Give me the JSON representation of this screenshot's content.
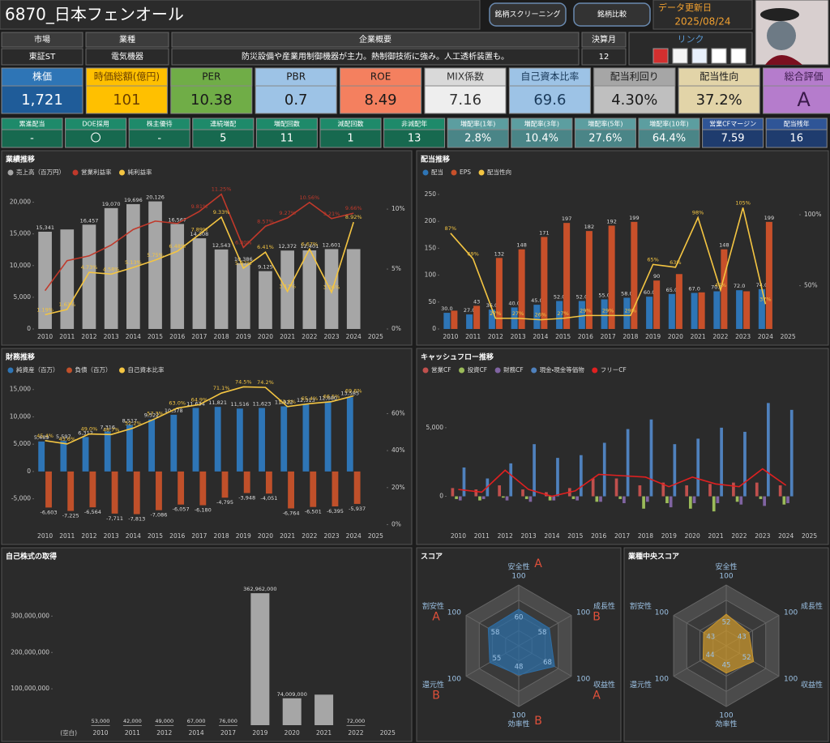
{
  "header": {
    "title": "6870_日本フェンオール",
    "buttons": [
      "銘柄スクリーニング",
      "銘柄比較"
    ],
    "update_label": "データ更新日",
    "update_date": "2025/08/24"
  },
  "info": {
    "fields": [
      {
        "label": "市場",
        "value": "東証ST"
      },
      {
        "label": "業種",
        "value": "電気機器"
      },
      {
        "label": "企業概要",
        "value": "防災設備や産業用制御機器が主力。熱制御技術に強み。人工透析装置も。"
      },
      {
        "label": "決算月",
        "value": "12"
      }
    ],
    "links_label": "リンク"
  },
  "kpis": [
    {
      "label": "株価",
      "value": "1,721"
    },
    {
      "label": "時価総額(億円)",
      "value": "101"
    },
    {
      "label": "PER",
      "value": "10.38"
    },
    {
      "label": "PBR",
      "value": "0.7"
    },
    {
      "label": "ROE",
      "value": "8.49"
    },
    {
      "label": "MIX係数",
      "value": "7.16"
    },
    {
      "label": "自己資本比率",
      "value": "69.6"
    },
    {
      "label": "配当利回り",
      "value": "4.30%"
    },
    {
      "label": "配当性向",
      "value": "37.2%"
    },
    {
      "label": "総合評価",
      "value": "A"
    }
  ],
  "stats": [
    {
      "label": "累進配当",
      "value": "-"
    },
    {
      "label": "DOE採用",
      "value": "〇"
    },
    {
      "label": "株主優待",
      "value": "-"
    },
    {
      "label": "連続増配",
      "value": "5"
    },
    {
      "label": "増配回数",
      "value": "11"
    },
    {
      "label": "減配回数",
      "value": "1"
    },
    {
      "label": "非減配年",
      "value": "13"
    },
    {
      "label": "増配率(1年)",
      "value": "2.8%"
    },
    {
      "label": "増配率(3年)",
      "value": "10.4%"
    },
    {
      "label": "増配率(5年)",
      "value": "27.6%"
    },
    {
      "label": "増配率(10年)",
      "value": "64.4%"
    },
    {
      "label": "営業CFマージン",
      "value": "7.59"
    },
    {
      "label": "配当残年",
      "value": "16"
    }
  ],
  "chart_data": [
    {
      "type": "combo",
      "title": "業績推移",
      "categories": [
        "2010",
        "2011",
        "2012",
        "2013",
        "2014",
        "2015",
        "2016",
        "2017",
        "2018",
        "2019",
        "2020",
        "2021",
        "2022",
        "2023",
        "2024",
        "2025"
      ],
      "series": [
        {
          "name": "売上高（百万円）",
          "type": "bar",
          "color": "#a6a6a6",
          "values": [
            15341,
            15700,
            16457,
            19070,
            19696,
            20126,
            16567,
            14308,
            12543,
            10386,
            9125,
            12372,
            12401,
            12601,
            12600,
            null
          ],
          "value_labels": [
            "15,341",
            null,
            "16,457",
            "19,070",
            "19,696",
            "20,126",
            "16,567",
            "14,308",
            "12,543",
            "10,386",
            "9,125",
            "12,372",
            "12,401",
            "12,601",
            null,
            null
          ]
        },
        {
          "name": "営業利益率",
          "type": "line",
          "axis": "y2",
          "color": "#c0392b",
          "values": [
            3.2,
            5.7,
            6.1,
            7.0,
            8.3,
            9.0,
            8.8,
            9.81,
            11.25,
            6.8,
            8.57,
            9.27,
            10.56,
            9.21,
            9.66,
            null
          ],
          "value_labels": [
            null,
            null,
            null,
            null,
            null,
            null,
            null,
            "9.81%",
            "11.25%",
            "6.80%",
            "8.57%",
            "9.27%",
            "10.56%",
            "9.21%",
            "9.66%",
            null
          ]
        },
        {
          "name": "純利益率",
          "type": "line",
          "axis": "y2",
          "color": "#f4c542",
          "values": [
            1.19,
            1.63,
            4.73,
            4.58,
            5.13,
            5.75,
            6.48,
            7.89,
            9.33,
            5.07,
            6.41,
            3.13,
            6.67,
            3.06,
            8.92,
            null
          ],
          "value_labels": [
            "1.19%",
            "1.63%",
            "4.73%",
            "4.58%",
            "5.13%",
            "5.75%",
            "6.48%",
            "7.89%",
            "9.33%",
            "5.07%",
            "6.41%",
            "3.13%",
            "6.67%",
            "3.06%",
            "8.92%",
            null
          ]
        }
      ],
      "ylim": [
        0,
        22500
      ],
      "yticks": [
        0,
        {
          "value": 5000,
          "label": "5,000"
        },
        {
          "value": 10000,
          "label": "10,000"
        },
        {
          "value": 15000,
          "label": "15,000"
        },
        {
          "value": 20000,
          "label": "20,000"
        }
      ],
      "y2lim": [
        0,
        11.9
      ],
      "y2ticks": [
        {
          "value": 0,
          "label": "0%"
        },
        {
          "value": 5,
          "label": "5%"
        },
        {
          "value": 10,
          "label": "10%"
        }
      ]
    },
    {
      "type": "combo",
      "title": "配当推移",
      "categories": [
        "2010",
        "2011",
        "2012",
        "2013",
        "2014",
        "2015",
        "2016",
        "2017",
        "2018",
        "2019",
        "2020",
        "2021",
        "2022",
        "2023",
        "2024",
        "2025"
      ],
      "series": [
        {
          "name": "配当",
          "type": "bar",
          "color": "#2e75b6",
          "values": [
            30,
            27,
            36,
            40,
            45,
            52,
            52,
            55,
            58,
            60,
            65,
            67,
            70,
            72,
            74,
            null
          ],
          "value_labels": [
            "30.0",
            "27.0",
            "36.0",
            "40.0",
            "45.0",
            "52.0",
            "52.0",
            "55.0",
            "58.0",
            "60.0",
            "65.0",
            "67.0",
            "70.0",
            "72.0",
            "74.0",
            null
          ]
        },
        {
          "name": "EPS",
          "type": "bar",
          "color": "#c8502a",
          "values": [
            34,
            43,
            132,
            148,
            171,
            197,
            182,
            192,
            199,
            90,
            102,
            68,
            148,
            70,
            199,
            null
          ],
          "value_labels": [
            null,
            "43",
            "132",
            "148",
            "171",
            "197",
            "182",
            "192",
            "199",
            "90",
            null,
            null,
            "148",
            null,
            "199",
            null
          ]
        },
        {
          "name": "配当性向",
          "type": "line",
          "axis": "y2",
          "color": "#f4c542",
          "values": [
            87,
            69,
            27,
            27,
            26,
            27,
            29,
            29,
            29,
            65,
            63,
            98,
            47,
            105,
            37,
            null
          ],
          "value_labels": [
            "87%",
            "69%",
            "27%",
            "27%",
            "26%",
            "27%",
            "29%",
            "29%",
            "29%",
            "65%",
            "63%",
            "98%",
            "47%",
            "105%",
            "37%",
            null
          ]
        }
      ],
      "ylim": [
        0,
        265
      ],
      "yticks": [
        0,
        50,
        100,
        150,
        200,
        250
      ],
      "y2lim": [
        19.5,
        120
      ],
      "y2ticks": [
        {
          "value": 50,
          "label": "50%"
        },
        {
          "value": 100,
          "label": "100%"
        }
      ]
    },
    {
      "type": "combo",
      "title": "財務推移",
      "categories": [
        "2010",
        "2011",
        "2012",
        "2013",
        "2014",
        "2015",
        "2016",
        "2017",
        "2018",
        "2019",
        "2020",
        "2021",
        "2022",
        "2023",
        "2024",
        "2025"
      ],
      "series": [
        {
          "name": "純資産（百万）",
          "type": "bar",
          "color": "#2e75b6",
          "values": [
            5489,
            5597,
            6312,
            7316,
            8517,
            9522,
            10378,
            11634,
            11821,
            11516,
            11623,
            11922,
            12313,
            12680,
            13585,
            null
          ],
          "value_labels": [
            "5,489",
            "5,597",
            "6,312",
            "7,316",
            "8,517",
            "9,522",
            "10,378",
            "11,634",
            "11,821",
            "11,516",
            "11,623",
            "11,922",
            "12,313",
            "12,680",
            "13,585",
            null
          ]
        },
        {
          "name": "負債（百万）",
          "type": "bar",
          "color": "#c0502a",
          "values": [
            -6603,
            -7225,
            -6564,
            -7711,
            -7813,
            -7086,
            -6057,
            -6180,
            -4795,
            -3948,
            -4051,
            -6764,
            -6501,
            -6395,
            -5937,
            null
          ],
          "value_labels": [
            "-6,603",
            "-7,225",
            "-6,564",
            "-7,711",
            "-7,813",
            "-7,086",
            "-6,057",
            "-6,180",
            "-4,795",
            "-3,948",
            "-4,051",
            "-6,764",
            "-6,501",
            "-6,395",
            "-5,937",
            null
          ]
        },
        {
          "name": "自己資本比率",
          "type": "line",
          "axis": "y2",
          "color": "#f4c542",
          "values": [
            45.4,
            43.6,
            49.0,
            48.7,
            52.2,
            57.3,
            63.0,
            64.9,
            71.1,
            74.5,
            74.2,
            63.8,
            65.4,
            66.5,
            69.6,
            null
          ],
          "value_labels": [
            "45.4%",
            "43.6%",
            "49.0%",
            "48.7%",
            "52.2%",
            "57.3%",
            "63.0%",
            "64.9%",
            "71.1%",
            "74.5%",
            "74.2%",
            "63.8%",
            "65.4%",
            "66.5%",
            "69.6%",
            null
          ]
        }
      ],
      "ylim": [
        -10400,
        16000
      ],
      "yticks": [
        {
          "value": -5000,
          "label": "-5,000"
        },
        0,
        {
          "value": 5000,
          "label": "5,000"
        },
        {
          "value": 10000,
          "label": "10,000"
        },
        {
          "value": 15000,
          "label": "15,000"
        }
      ],
      "y2lim": [
        -2,
        76
      ],
      "y2ticks": [
        {
          "value": 0,
          "label": "0%"
        },
        {
          "value": 20,
          "label": "20%"
        },
        {
          "value": 40,
          "label": "40%"
        },
        {
          "value": 60,
          "label": "60%"
        }
      ]
    },
    {
      "type": "combo",
      "title": "キャッシュフロー推移",
      "categories": [
        "2010",
        "2011",
        "2012",
        "2013",
        "2014",
        "2015",
        "2016",
        "2017",
        "2018",
        "2019",
        "2020",
        "2021",
        "2022",
        "2023",
        "2024",
        "2025"
      ],
      "series": [
        {
          "name": "営業CF",
          "type": "bar",
          "color": "#c0504d",
          "values": [
            600,
            500,
            800,
            500,
            300,
            600,
            1300,
            1300,
            800,
            1000,
            800,
            900,
            1000,
            1000,
            800,
            null
          ]
        },
        {
          "name": "投資CF",
          "type": "bar",
          "color": "#9bbb59",
          "values": [
            -200,
            -300,
            -100,
            -200,
            -300,
            -200,
            -400,
            -200,
            -900,
            -500,
            -900,
            -1100,
            -400,
            -200,
            -600,
            null
          ]
        },
        {
          "name": "財務CF",
          "type": "bar",
          "color": "#8064a2",
          "values": [
            -300,
            -200,
            -300,
            -400,
            -300,
            -300,
            -400,
            -500,
            -400,
            -800,
            -500,
            -500,
            -600,
            -700,
            -500,
            null
          ]
        },
        {
          "name": "現金・現金等価物",
          "type": "bar",
          "color": "#4f81bd",
          "values": [
            2100,
            1300,
            2400,
            3800,
            2800,
            3000,
            3900,
            4900,
            5600,
            3800,
            4200,
            5000,
            4700,
            6800,
            6300,
            null
          ]
        },
        {
          "name": "フリーCF",
          "type": "line",
          "color": "#e02020",
          "values": [
            500,
            300,
            1900,
            500,
            0,
            400,
            1600,
            1500,
            1400,
            700,
            1400,
            900,
            700,
            2000,
            800,
            null
          ]
        }
      ],
      "ylim": [
        -2330,
        8180
      ],
      "yticks": [
        0,
        {
          "value": 5000,
          "label": "5,000"
        }
      ]
    },
    {
      "type": "combo",
      "title": "自己株式の取得",
      "categories": [
        "(空白)",
        "2010",
        "2011",
        "2012",
        "2014",
        "2017",
        "2019",
        "2020",
        "2021",
        "2022",
        "2025"
      ],
      "color": "#a6a6a6",
      "values": [
        null,
        53000,
        42000,
        49000,
        67000,
        76000,
        362962000,
        74009000,
        84000000,
        72000,
        null
      ],
      "value_labels": [
        null,
        "53,000",
        "42,000",
        "49,000",
        "67,000",
        "76,000",
        "362,962,000",
        "74,009,000",
        null,
        "72,000",
        null
      ],
      "ylim": [
        0,
        390000000
      ],
      "yticks": [
        {
          "value": 100000000,
          "label": "100,000,000"
        },
        {
          "value": 200000000,
          "label": "200,000,000"
        },
        {
          "value": 300000000,
          "label": "300,000,000"
        }
      ]
    },
    {
      "type": "radar",
      "title": "スコア",
      "color": "#2e6da4",
      "axes": [
        "安全性",
        "成長性",
        "収益性",
        "効率性",
        "還元性",
        "割安性"
      ],
      "values": [
        60,
        58,
        68,
        48,
        55,
        58
      ],
      "grades": [
        "A",
        "B",
        "A",
        "B",
        "B",
        "A"
      ],
      "rlim": [
        0,
        100
      ],
      "rticks": [
        100
      ]
    },
    {
      "type": "radar",
      "title": "業種中央スコア",
      "color": "#c8962e",
      "axes": [
        "安全性",
        "成長性",
        "収益性",
        "効率性",
        "還元性",
        "割安性"
      ],
      "values": [
        52,
        43,
        52,
        45,
        44,
        43
      ],
      "rlim": [
        0,
        100
      ],
      "rticks": [
        100
      ]
    }
  ]
}
